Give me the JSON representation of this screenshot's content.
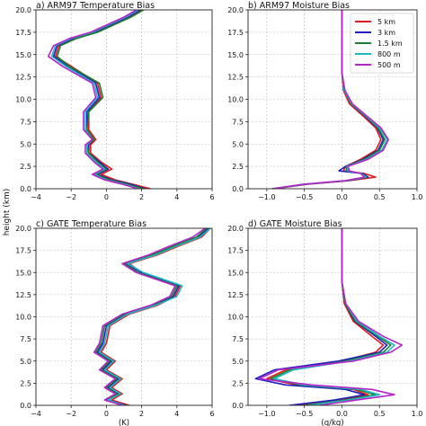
{
  "figure": {
    "ylabel": "height (km)"
  },
  "legend": {
    "entries": [
      "5 km",
      "3 km",
      "1.5 km",
      "800 m",
      "500 m"
    ],
    "colors": [
      "#e41a1c",
      "#1f1fbf",
      "#1a7f2a",
      "#1fb5c4",
      "#b624c9"
    ]
  },
  "chart_data": [
    {
      "type": "line",
      "title": "a) ARM97 Temperature Bias",
      "xlabel": "",
      "xlim": [
        -4,
        6
      ],
      "ylim": [
        0,
        20
      ],
      "xticks": [
        "−4",
        "−2",
        "0",
        "2",
        "4",
        "6"
      ],
      "yticks": [
        "0.0",
        "2.5",
        "5.0",
        "7.5",
        "10.0",
        "12.5",
        "15.0",
        "17.5",
        "20.0"
      ],
      "grid": true,
      "series": [
        {
          "name": "5 km",
          "x": [
            2.5,
            1.5,
            0.5,
            -0.3,
            0.3,
            -0.3,
            -0.9,
            -0.9,
            -0.6,
            -1.0,
            -1.0,
            -0.3,
            -0.5,
            -2.0,
            -2.9,
            -2.7,
            -1.8,
            -0.6,
            0.3,
            1.3,
            2.0
          ],
          "y": [
            0,
            0.5,
            1.0,
            1.6,
            2.2,
            3.0,
            4.0,
            4.9,
            5.5,
            6.6,
            8.6,
            10.2,
            11.8,
            13.7,
            14.8,
            16.0,
            16.8,
            17.5,
            18.3,
            19.2,
            20.0
          ]
        },
        {
          "name": "3 km",
          "x": [
            2.2,
            1.4,
            0.3,
            -0.5,
            0.1,
            -0.4,
            -1.0,
            -1.0,
            -0.7,
            -1.1,
            -1.1,
            -0.4,
            -0.6,
            -2.2,
            -3.0,
            -2.8,
            -1.9,
            -0.7,
            0.2,
            1.2,
            1.9
          ],
          "y": [
            0,
            0.5,
            1.0,
            1.6,
            2.2,
            3.0,
            4.0,
            4.9,
            5.5,
            6.6,
            8.6,
            10.2,
            11.8,
            13.7,
            14.8,
            16.0,
            16.8,
            17.5,
            18.3,
            19.2,
            20.0
          ]
        },
        {
          "name": "1.5 km",
          "x": [
            2.1,
            1.2,
            0.2,
            -0.6,
            0.0,
            -0.5,
            -1.0,
            -1.1,
            -0.7,
            -1.1,
            -1.0,
            -0.2,
            -0.4,
            -2.1,
            -2.8,
            -2.6,
            -1.7,
            -0.5,
            0.4,
            1.4,
            2.1
          ],
          "y": [
            0,
            0.5,
            1.0,
            1.6,
            2.2,
            3.0,
            4.0,
            4.9,
            5.5,
            6.6,
            8.6,
            10.2,
            11.8,
            13.7,
            14.8,
            16.0,
            16.8,
            17.5,
            18.3,
            19.2,
            20.0
          ]
        },
        {
          "name": "800 m",
          "x": [
            1.9,
            1.0,
            0.0,
            -0.7,
            -0.1,
            -0.6,
            -1.1,
            -1.1,
            -0.8,
            -1.2,
            -1.2,
            -0.5,
            -0.7,
            -2.3,
            -3.1,
            -2.9,
            -2.0,
            -0.8,
            0.1,
            1.1,
            1.8
          ],
          "y": [
            0,
            0.5,
            1.0,
            1.6,
            2.2,
            3.0,
            4.0,
            4.9,
            5.5,
            6.6,
            8.6,
            10.2,
            11.8,
            13.7,
            14.8,
            16.0,
            16.8,
            17.5,
            18.3,
            19.2,
            20.0
          ]
        },
        {
          "name": "500 m",
          "x": [
            1.8,
            0.9,
            -0.1,
            -0.8,
            -0.2,
            -0.7,
            -1.2,
            -1.2,
            -0.8,
            -1.3,
            -1.3,
            -0.6,
            -0.8,
            -2.5,
            -3.3,
            -3.0,
            -2.1,
            -0.9,
            0.0,
            1.0,
            1.7
          ],
          "y": [
            0,
            0.5,
            1.0,
            1.6,
            2.2,
            3.0,
            4.0,
            4.9,
            5.5,
            6.6,
            8.6,
            10.2,
            11.8,
            13.7,
            14.8,
            16.0,
            16.8,
            17.5,
            18.3,
            19.2,
            20.0
          ]
        }
      ]
    },
    {
      "type": "line",
      "title": "b) ARM97 Moisture Bias",
      "xlabel": "",
      "xlim": [
        -1.25,
        1.0
      ],
      "ylim": [
        0,
        20
      ],
      "xticks": [
        "−1.0",
        "−0.5",
        "0.0",
        "0.5",
        "1.0"
      ],
      "yticks": [
        "0.0",
        "2.5",
        "5.0",
        "7.5",
        "10.0",
        "12.5",
        "15.0",
        "17.5",
        "20.0"
      ],
      "grid": true,
      "series": [
        {
          "name": "5 km",
          "x": [
            -0.9,
            -0.45,
            0.1,
            0.45,
            0.3,
            0.02,
            0.05,
            0.25,
            0.45,
            0.52,
            0.45,
            0.3,
            0.1,
            0.02,
            0.0,
            0.0,
            0.0
          ],
          "y": [
            0,
            0.5,
            0.9,
            1.3,
            1.7,
            2.0,
            2.5,
            3.3,
            4.3,
            5.5,
            6.8,
            8.0,
            9.5,
            11.0,
            13.0,
            16.0,
            20.0
          ]
        },
        {
          "name": "3 km",
          "x": [
            -0.92,
            -0.48,
            0.08,
            0.35,
            0.28,
            -0.04,
            0.05,
            0.28,
            0.48,
            0.55,
            0.47,
            0.32,
            0.12,
            0.03,
            0.0,
            0.0,
            0.0
          ],
          "y": [
            0,
            0.5,
            0.9,
            1.3,
            1.7,
            2.0,
            2.5,
            3.3,
            4.3,
            5.5,
            6.8,
            8.0,
            9.5,
            11.0,
            13.0,
            16.0,
            20.0
          ]
        },
        {
          "name": "1.5 km",
          "x": [
            -0.92,
            -0.5,
            0.06,
            0.33,
            0.26,
            0.06,
            0.06,
            0.3,
            0.5,
            0.57,
            0.48,
            0.33,
            0.12,
            0.03,
            0.0,
            0.0,
            0.0
          ],
          "y": [
            0,
            0.5,
            0.9,
            1.3,
            1.7,
            2.0,
            2.5,
            3.3,
            4.3,
            5.5,
            6.8,
            8.0,
            9.5,
            11.0,
            13.0,
            16.0,
            20.0
          ]
        },
        {
          "name": "800 m",
          "x": [
            -0.93,
            -0.5,
            0.05,
            0.32,
            0.26,
            0.08,
            0.07,
            0.33,
            0.53,
            0.6,
            0.5,
            0.34,
            0.13,
            0.03,
            0.0,
            0.0,
            0.0
          ],
          "y": [
            0,
            0.5,
            0.9,
            1.3,
            1.7,
            2.0,
            2.5,
            3.3,
            4.3,
            5.5,
            6.8,
            8.0,
            9.5,
            11.0,
            13.0,
            16.0,
            20.0
          ]
        },
        {
          "name": "500 m",
          "x": [
            -0.93,
            -0.52,
            0.04,
            0.3,
            0.25,
            0.1,
            0.08,
            0.35,
            0.55,
            0.62,
            0.52,
            0.35,
            0.14,
            0.04,
            0.0,
            0.0,
            0.0
          ],
          "y": [
            0,
            0.5,
            0.9,
            1.3,
            1.7,
            2.0,
            2.5,
            3.3,
            4.3,
            5.5,
            6.8,
            8.0,
            9.5,
            11.0,
            13.0,
            16.0,
            20.0
          ]
        }
      ]
    },
    {
      "type": "line",
      "title": "c) GATE Temperature Bias",
      "xlabel": "(K)",
      "xlim": [
        -4,
        6
      ],
      "ylim": [
        0,
        20
      ],
      "xticks": [
        "−4",
        "−2",
        "0",
        "2",
        "4",
        "6"
      ],
      "yticks": [
        "0.0",
        "2.5",
        "5.0",
        "7.5",
        "10.0",
        "12.5",
        "15.0",
        "17.5",
        "20.0"
      ],
      "grid": true,
      "series": [
        {
          "name": "5 km",
          "x": [
            1.3,
            0.3,
            0.9,
            0.3,
            0.9,
            0.0,
            0.5,
            -0.3,
            0.0,
            0.2,
            1.3,
            2.9,
            3.9,
            4.2,
            2.0,
            1.3,
            2.9,
            4.1,
            5.4,
            5.9
          ],
          "y": [
            0,
            0.6,
            1.3,
            2.0,
            3.0,
            4.0,
            5.0,
            6.0,
            7.0,
            9.0,
            10.3,
            11.3,
            12.3,
            13.5,
            15.0,
            16.0,
            17.0,
            18.0,
            19.0,
            20.0
          ]
        },
        {
          "name": "3 km",
          "x": [
            1.1,
            0.1,
            0.7,
            0.1,
            0.7,
            -0.2,
            0.3,
            -0.5,
            -0.2,
            0.0,
            1.1,
            2.7,
            3.8,
            4.1,
            2.0,
            1.1,
            2.7,
            3.9,
            5.2,
            5.8
          ],
          "y": [
            0,
            0.6,
            1.3,
            2.0,
            3.0,
            4.0,
            5.0,
            6.0,
            7.0,
            9.0,
            10.3,
            11.3,
            12.3,
            13.5,
            15.0,
            16.0,
            17.0,
            18.0,
            19.0,
            20.0
          ]
        },
        {
          "name": "1.5 km",
          "x": [
            1.0,
            0.0,
            0.6,
            0.0,
            0.6,
            -0.3,
            0.2,
            -0.6,
            -0.3,
            -0.1,
            1.0,
            2.6,
            3.7,
            4.0,
            1.8,
            1.0,
            2.6,
            3.8,
            5.1,
            5.7
          ],
          "y": [
            0,
            0.6,
            1.3,
            2.0,
            3.0,
            4.0,
            5.0,
            6.0,
            7.0,
            9.0,
            10.3,
            11.3,
            12.3,
            13.5,
            15.0,
            16.0,
            17.0,
            18.0,
            19.0,
            20.0
          ]
        },
        {
          "name": "800 m",
          "x": [
            1.0,
            0.1,
            0.8,
            0.2,
            0.8,
            -0.1,
            0.4,
            -0.4,
            -0.1,
            0.1,
            1.2,
            2.8,
            4.0,
            4.3,
            2.1,
            1.2,
            2.8,
            4.0,
            5.3,
            5.9
          ],
          "y": [
            0,
            0.6,
            1.3,
            2.0,
            3.0,
            4.0,
            5.0,
            6.0,
            7.0,
            9.0,
            10.3,
            11.3,
            12.3,
            13.5,
            15.0,
            16.0,
            17.0,
            18.0,
            19.0,
            20.0
          ]
        },
        {
          "name": "500 m",
          "x": [
            0.9,
            -0.1,
            0.5,
            -0.1,
            0.5,
            -0.4,
            0.1,
            -0.7,
            -0.4,
            -0.2,
            0.9,
            2.5,
            3.6,
            3.9,
            1.7,
            0.9,
            2.4,
            3.6,
            4.9,
            5.6
          ],
          "y": [
            0,
            0.6,
            1.3,
            2.0,
            3.0,
            4.0,
            5.0,
            6.0,
            7.0,
            9.0,
            10.3,
            11.3,
            12.3,
            13.5,
            15.0,
            16.0,
            17.0,
            18.0,
            19.0,
            20.0
          ]
        }
      ]
    },
    {
      "type": "line",
      "title": "d) GATE Moisture Bias",
      "xlabel": "(q/kg)",
      "xlim": [
        -1.25,
        1.0
      ],
      "ylim": [
        0,
        20
      ],
      "xticks": [
        "−1.0",
        "−0.5",
        "0.0",
        "0.5",
        "1.0"
      ],
      "yticks": [
        "0.0",
        "2.5",
        "5.0",
        "7.5",
        "10.0",
        "12.5",
        "15.0",
        "17.5",
        "20.0"
      ],
      "grid": true,
      "series": [
        {
          "name": "5 km",
          "x": [
            -0.6,
            0.0,
            0.35,
            0.15,
            -0.6,
            -1.0,
            -0.75,
            0.0,
            0.45,
            0.55,
            0.4,
            0.15,
            0.03,
            0.0,
            0.0
          ],
          "y": [
            0,
            0.6,
            1.2,
            1.8,
            2.3,
            3.0,
            4.0,
            5.0,
            6.0,
            6.8,
            7.8,
            9.5,
            11.5,
            14.0,
            20.0
          ]
        },
        {
          "name": "3 km",
          "x": [
            -0.7,
            -0.1,
            0.3,
            0.05,
            -0.75,
            -1.15,
            -0.9,
            -0.05,
            0.5,
            0.6,
            0.45,
            0.17,
            0.04,
            0.0,
            0.0
          ],
          "y": [
            0,
            0.6,
            1.2,
            1.8,
            2.3,
            3.0,
            4.0,
            5.0,
            6.0,
            6.8,
            7.8,
            9.5,
            11.5,
            14.0,
            20.0
          ]
        },
        {
          "name": "1.5 km",
          "x": [
            -0.5,
            0.05,
            0.45,
            0.2,
            -0.55,
            -0.95,
            -0.7,
            0.05,
            0.55,
            0.65,
            0.48,
            0.18,
            0.04,
            0.0,
            0.0
          ],
          "y": [
            0,
            0.6,
            1.2,
            1.8,
            2.3,
            3.0,
            4.0,
            5.0,
            6.0,
            6.8,
            7.8,
            9.5,
            11.5,
            14.0,
            20.0
          ]
        },
        {
          "name": "800 m",
          "x": [
            -0.45,
            0.1,
            0.5,
            0.25,
            -0.5,
            -0.9,
            -0.65,
            0.1,
            0.6,
            0.7,
            0.5,
            0.2,
            0.05,
            0.0,
            0.0
          ],
          "y": [
            0,
            0.6,
            1.2,
            1.8,
            2.3,
            3.0,
            4.0,
            5.0,
            6.0,
            6.8,
            7.8,
            9.5,
            11.5,
            14.0,
            20.0
          ]
        },
        {
          "name": "500 m",
          "x": [
            -0.3,
            0.2,
            0.7,
            0.4,
            -0.4,
            -1.1,
            -0.85,
            0.15,
            0.65,
            0.8,
            0.55,
            0.22,
            0.05,
            0.0,
            0.0
          ],
          "y": [
            0,
            0.6,
            1.2,
            1.8,
            2.3,
            3.0,
            4.0,
            5.0,
            6.0,
            6.8,
            7.8,
            9.5,
            11.5,
            14.0,
            20.0
          ]
        }
      ]
    }
  ]
}
